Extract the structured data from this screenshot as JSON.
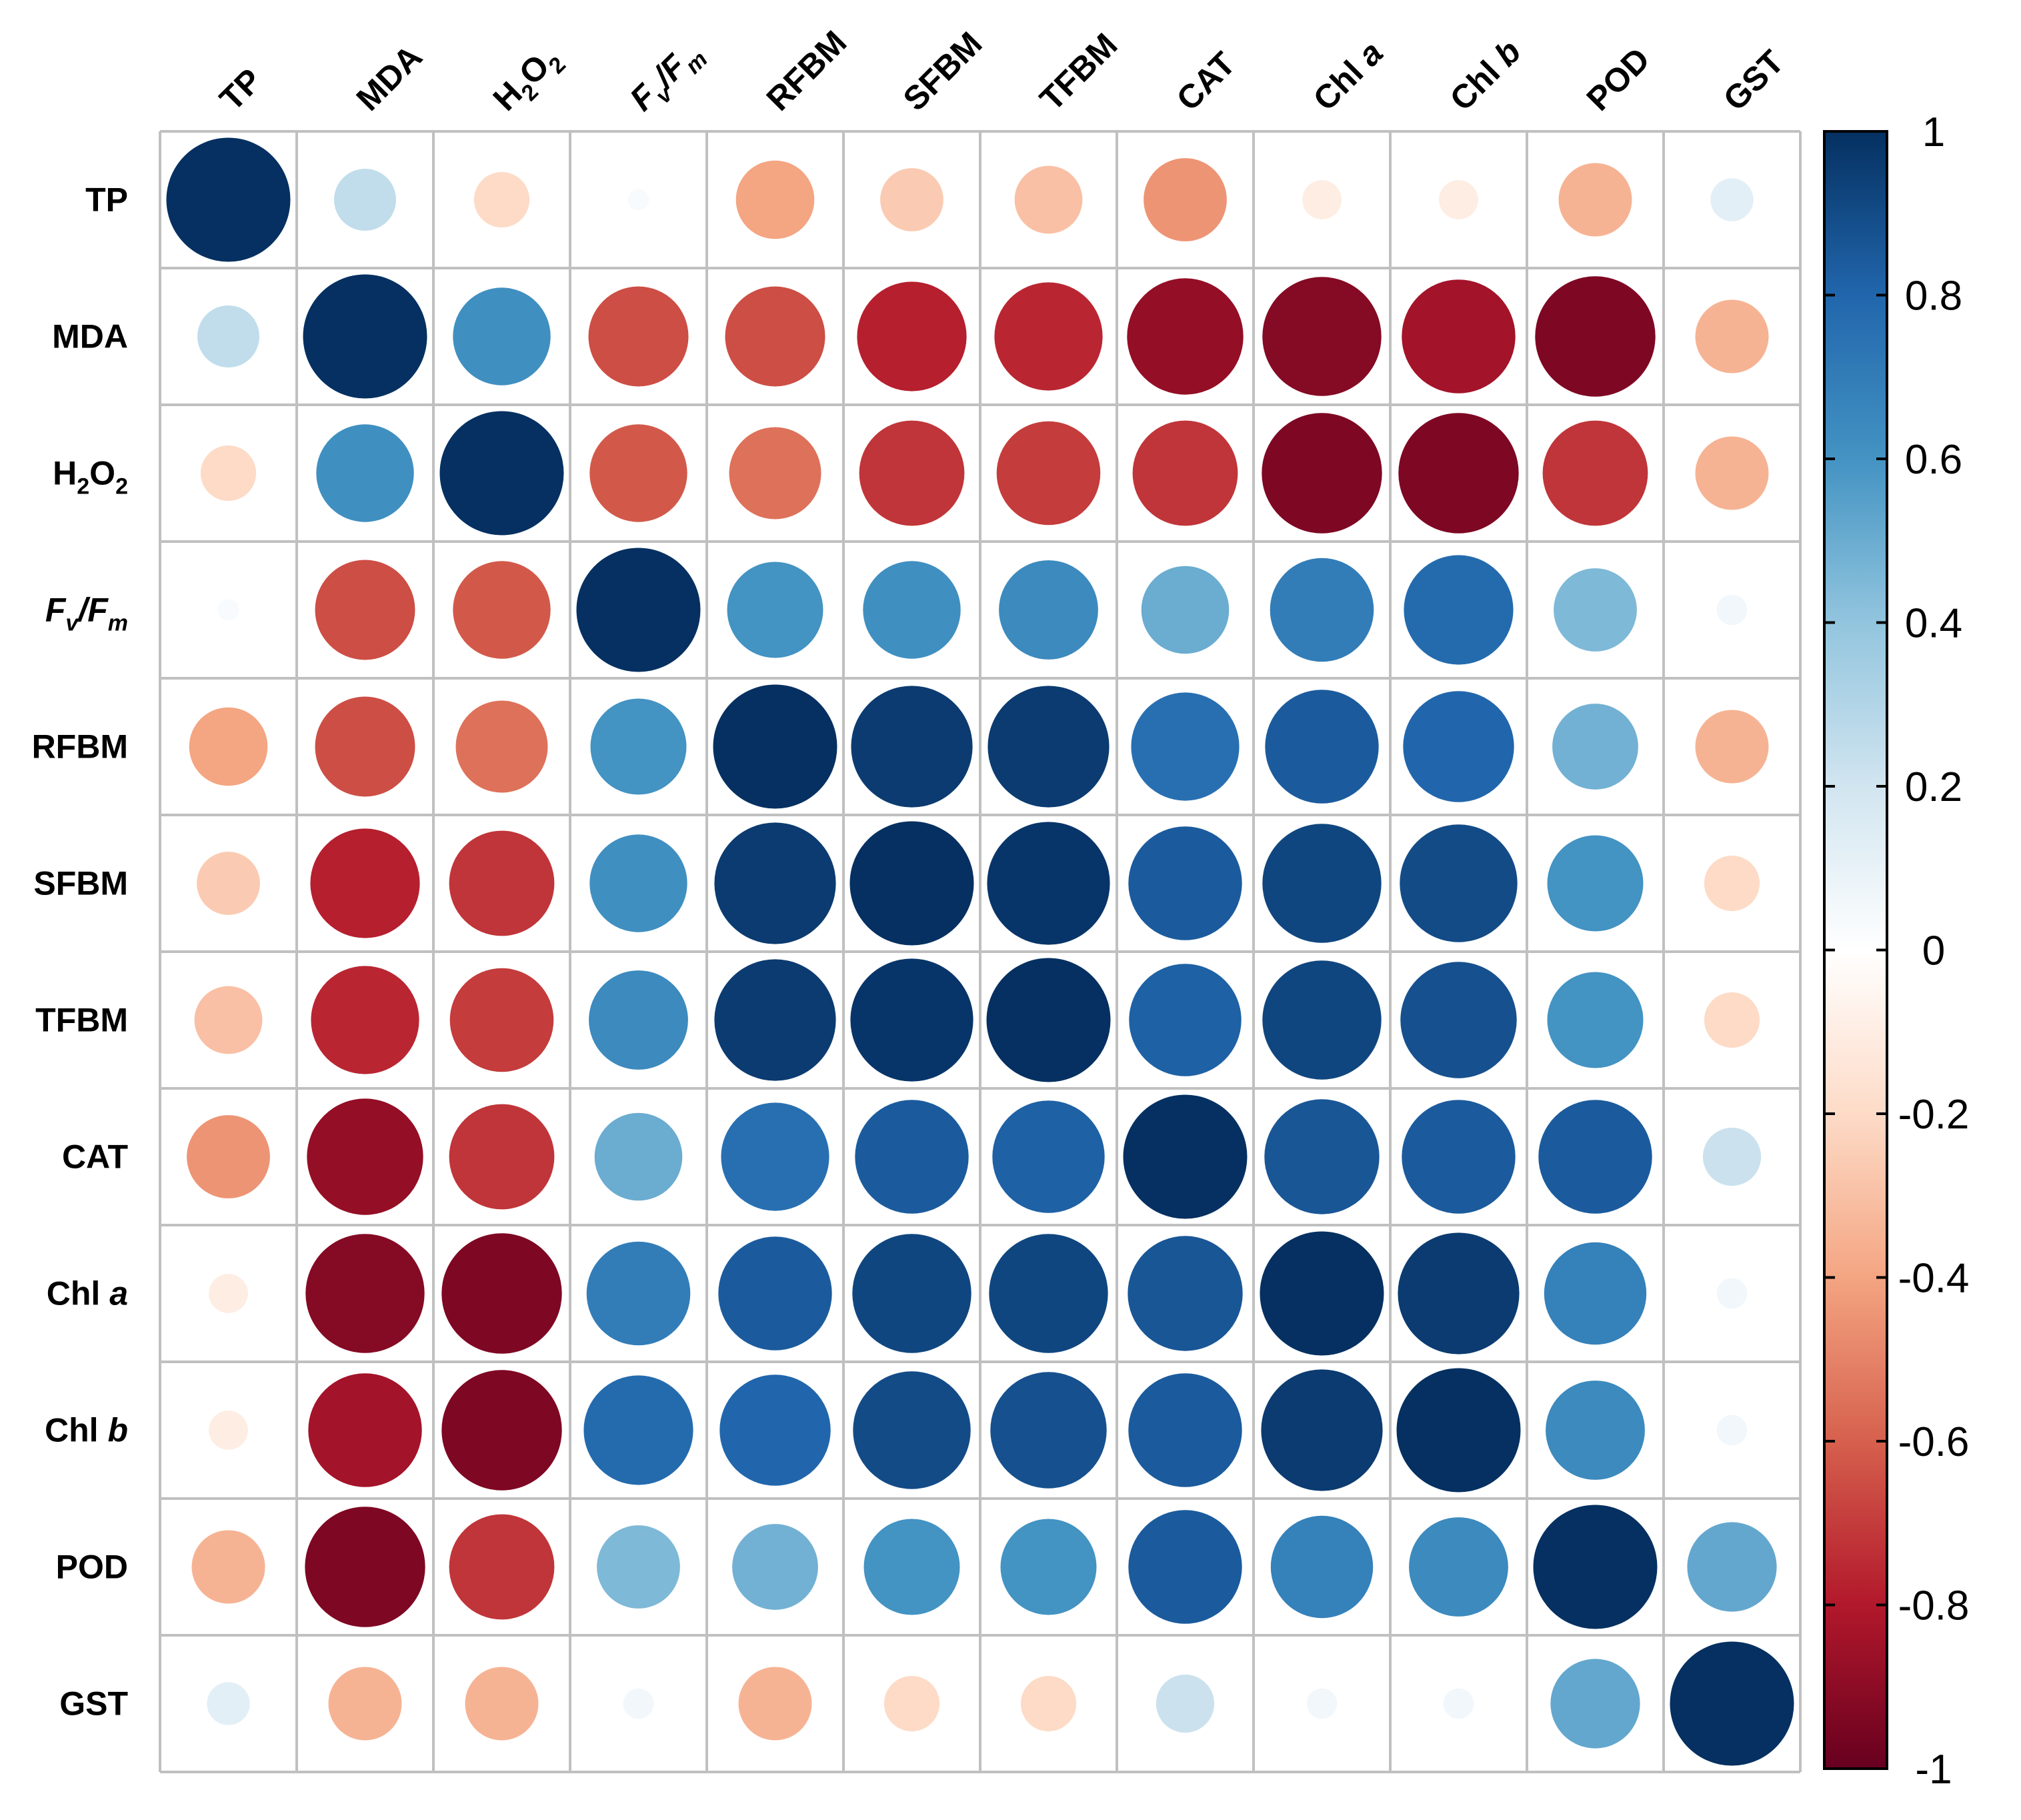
{
  "chart_data": {
    "type": "heatmap",
    "subtype": "correlation-circle-matrix",
    "title": "",
    "variables": [
      {
        "base": "TP"
      },
      {
        "base": "MDA"
      },
      {
        "base": "H",
        "sub1": "2",
        "mid": "O",
        "sub2": "2"
      },
      {
        "base": "F",
        "sub1": "v",
        "mid": "/F",
        "sub2": "m",
        "italic": true
      },
      {
        "base": "RFBM"
      },
      {
        "base": "SFBM"
      },
      {
        "base": "TFBM"
      },
      {
        "base": "CAT"
      },
      {
        "base": "Chl ",
        "italic_part": "a"
      },
      {
        "base": "Chl ",
        "italic_part": "b"
      },
      {
        "base": "POD"
      },
      {
        "base": "GST"
      }
    ],
    "matrix": [
      [
        1.0,
        0.25,
        -0.2,
        0.03,
        -0.4,
        -0.26,
        -0.3,
        -0.45,
        -0.1,
        -0.1,
        -0.35,
        0.12
      ],
      [
        0.25,
        1.0,
        0.62,
        -0.65,
        -0.65,
        -0.78,
        -0.76,
        -0.88,
        -0.92,
        -0.84,
        -0.94,
        -0.35
      ],
      [
        -0.2,
        0.62,
        1.0,
        -0.62,
        -0.55,
        -0.72,
        -0.7,
        -0.72,
        -0.94,
        -0.94,
        -0.72,
        -0.35
      ],
      [
        0.03,
        -0.65,
        -0.62,
        1.0,
        0.6,
        0.62,
        0.64,
        0.5,
        0.7,
        0.78,
        0.45,
        0.06
      ],
      [
        -0.4,
        -0.65,
        -0.55,
        0.6,
        1.0,
        0.96,
        0.96,
        0.76,
        0.84,
        0.8,
        0.48,
        -0.35
      ],
      [
        -0.26,
        -0.78,
        -0.72,
        0.62,
        0.96,
        1.0,
        0.98,
        0.84,
        0.92,
        0.9,
        0.6,
        -0.2
      ],
      [
        -0.3,
        -0.76,
        -0.7,
        0.64,
        0.96,
        0.98,
        1.0,
        0.82,
        0.92,
        0.88,
        0.6,
        -0.2
      ],
      [
        -0.45,
        -0.88,
        -0.72,
        0.5,
        0.76,
        0.84,
        0.82,
        1.0,
        0.86,
        0.84,
        0.84,
        0.22
      ],
      [
        -0.1,
        -0.92,
        -0.94,
        0.7,
        0.84,
        0.92,
        0.92,
        0.86,
        1.0,
        0.96,
        0.68,
        0.06
      ],
      [
        -0.1,
        -0.84,
        -0.94,
        0.78,
        0.8,
        0.9,
        0.88,
        0.84,
        0.96,
        1.0,
        0.64,
        0.06
      ],
      [
        -0.35,
        -0.94,
        -0.72,
        0.45,
        0.48,
        0.6,
        0.6,
        0.84,
        0.68,
        0.64,
        1.0,
        0.52
      ],
      [
        0.12,
        -0.35,
        -0.35,
        0.06,
        -0.35,
        -0.2,
        -0.2,
        0.22,
        0.06,
        0.06,
        0.52,
        1.0
      ]
    ],
    "colorbar": {
      "range": [
        -1,
        1
      ],
      "ticks": [
        "1",
        "0.8",
        "0.6",
        "0.4",
        "0.2",
        "0",
        "-0.2",
        "-0.4",
        "-0.6",
        "-0.8",
        "-1"
      ],
      "tick_values": [
        1,
        0.8,
        0.6,
        0.4,
        0.2,
        0,
        -0.2,
        -0.4,
        -0.6,
        -0.8,
        -1
      ],
      "placement": "right",
      "stops": [
        {
          "v": -1.0,
          "color": "#67001F"
        },
        {
          "v": -0.8,
          "color": "#B2182B"
        },
        {
          "v": -0.6,
          "color": "#D6604D"
        },
        {
          "v": -0.4,
          "color": "#F4A582"
        },
        {
          "v": -0.2,
          "color": "#FDDBC7"
        },
        {
          "v": 0.0,
          "color": "#FFFFFF"
        },
        {
          "v": 0.2,
          "color": "#D1E5F0"
        },
        {
          "v": 0.4,
          "color": "#92C5DE"
        },
        {
          "v": 0.6,
          "color": "#4393C3"
        },
        {
          "v": 0.8,
          "color": "#2166AC"
        },
        {
          "v": 1.0,
          "color": "#053061"
        }
      ]
    }
  }
}
